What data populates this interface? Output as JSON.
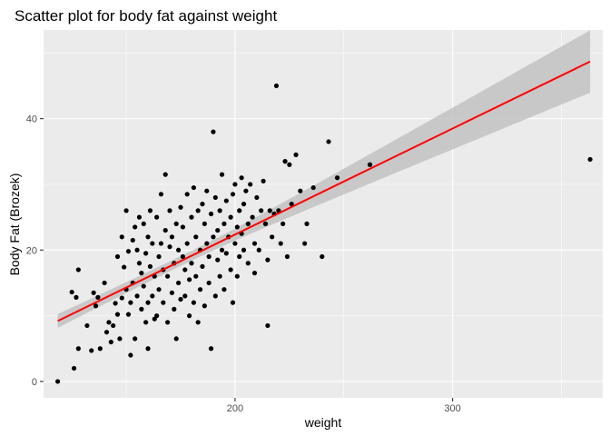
{
  "chart_data": {
    "type": "scatter",
    "title": "Scatter plot for body fat against weight",
    "xlabel": "weight",
    "ylabel": "Body Fat (Brozek)",
    "xlim": [
      112,
      369
    ],
    "ylim": [
      -2.5,
      53.5
    ],
    "x_ticks": [
      200,
      300
    ],
    "x_minor": [
      150,
      250,
      350
    ],
    "y_ticks": [
      0,
      20,
      40
    ],
    "y_minor": [
      10,
      30,
      50
    ],
    "grid": true,
    "legend": "none",
    "colors": {
      "panel": "#ebebeb",
      "grid": "#ffffff",
      "points": "#000000",
      "fit_line": "#ff0000",
      "confidence_band": "#bfbfbf"
    },
    "fit": {
      "method": "lm",
      "x_range": [
        118.5,
        363.2
      ],
      "y_at_start": 9.2,
      "y_at_end": 48.7,
      "band_lower_at_start": 8.2,
      "band_upper_at_start": 10.3,
      "band_lower_at_end": 44.0,
      "band_upper_at_end": 53.5
    },
    "points": [
      [
        118.5,
        0.0
      ],
      [
        125,
        13.6
      ],
      [
        126,
        2.0
      ],
      [
        127,
        12.8
      ],
      [
        128,
        17.0
      ],
      [
        128,
        5.0
      ],
      [
        132,
        8.5
      ],
      [
        134,
        4.7
      ],
      [
        135,
        13.5
      ],
      [
        136,
        11.5
      ],
      [
        137,
        12.8
      ],
      [
        138,
        5.0
      ],
      [
        140,
        15.0
      ],
      [
        141,
        7.5
      ],
      [
        142,
        9.0
      ],
      [
        143,
        6.0
      ],
      [
        144,
        8.5
      ],
      [
        145,
        11.9
      ],
      [
        146,
        10.2
      ],
      [
        146,
        19.0
      ],
      [
        147,
        6.5
      ],
      [
        148,
        12.7
      ],
      [
        148,
        22.0
      ],
      [
        149,
        17.4
      ],
      [
        150,
        26.0
      ],
      [
        150,
        14.0
      ],
      [
        151,
        19.8
      ],
      [
        151,
        10.2
      ],
      [
        152,
        4.0
      ],
      [
        152,
        12.0
      ],
      [
        153,
        21.5
      ],
      [
        153,
        15.0
      ],
      [
        154,
        23.5
      ],
      [
        154,
        6.5
      ],
      [
        155,
        20.0
      ],
      [
        155,
        13.0
      ],
      [
        156,
        25.0
      ],
      [
        156,
        18.0
      ],
      [
        157,
        16.5
      ],
      [
        157,
        11.0
      ],
      [
        158,
        24.0
      ],
      [
        158,
        14.5
      ],
      [
        159,
        9.0
      ],
      [
        159,
        19.5
      ],
      [
        160,
        22.0
      ],
      [
        160,
        12.0
      ],
      [
        160,
        5.0
      ],
      [
        161,
        17.5
      ],
      [
        161,
        26.0
      ],
      [
        162,
        13.0
      ],
      [
        162,
        21.0
      ],
      [
        163,
        9.5
      ],
      [
        163,
        16.0
      ],
      [
        164,
        25.0
      ],
      [
        164,
        10.0
      ],
      [
        165,
        19.0
      ],
      [
        165,
        14.0
      ],
      [
        166,
        28.5
      ],
      [
        166,
        21.0
      ],
      [
        167,
        12.0
      ],
      [
        167,
        17.0
      ],
      [
        168,
        31.5
      ],
      [
        168,
        23.0
      ],
      [
        169,
        16.0
      ],
      [
        169,
        9.0
      ],
      [
        170,
        20.5
      ],
      [
        170,
        26.0
      ],
      [
        171,
        13.5
      ],
      [
        171,
        22.0
      ],
      [
        172,
        18.0
      ],
      [
        172,
        11.0
      ],
      [
        173,
        24.0
      ],
      [
        173,
        6.5
      ],
      [
        174,
        15.0
      ],
      [
        174,
        20.0
      ],
      [
        175,
        26.5
      ],
      [
        175,
        12.5
      ],
      [
        176,
        19.0
      ],
      [
        176,
        23.5
      ],
      [
        177,
        13.0
      ],
      [
        177,
        17.0
      ],
      [
        178,
        28.5
      ],
      [
        178,
        21.0
      ],
      [
        179,
        15.5
      ],
      [
        179,
        10.0
      ],
      [
        180,
        25.0
      ],
      [
        180,
        18.0
      ],
      [
        181,
        29.5
      ],
      [
        181,
        12.0
      ],
      [
        182,
        22.0
      ],
      [
        182,
        16.0
      ],
      [
        183,
        26.0
      ],
      [
        183,
        9.0
      ],
      [
        184,
        20.0
      ],
      [
        184,
        14.0
      ],
      [
        185,
        27.0
      ],
      [
        185,
        17.5
      ],
      [
        186,
        24.0
      ],
      [
        186,
        11.5
      ],
      [
        187,
        21.0
      ],
      [
        187,
        29.0
      ],
      [
        188,
        15.0
      ],
      [
        188,
        19.0
      ],
      [
        189,
        25.5
      ],
      [
        189,
        5.0
      ],
      [
        190,
        22.0
      ],
      [
        190,
        38.0
      ],
      [
        191,
        13.0
      ],
      [
        191,
        28.0
      ],
      [
        192,
        18.5
      ],
      [
        192,
        23.0
      ],
      [
        193,
        26.0
      ],
      [
        193,
        16.0
      ],
      [
        194,
        31.5
      ],
      [
        194,
        20.0
      ],
      [
        195,
        24.0
      ],
      [
        195,
        14.0
      ],
      [
        196,
        27.5
      ],
      [
        196,
        19.5
      ],
      [
        197,
        22.0
      ],
      [
        198,
        17.0
      ],
      [
        198,
        25.0
      ],
      [
        199,
        12.0
      ],
      [
        199,
        28.5
      ],
      [
        200,
        21.0
      ],
      [
        200,
        30.0
      ],
      [
        201,
        23.5
      ],
      [
        201,
        16.0
      ],
      [
        202,
        26.0
      ],
      [
        202,
        19.0
      ],
      [
        203,
        31.0
      ],
      [
        203,
        22.5
      ],
      [
        204,
        27.0
      ],
      [
        204,
        20.0
      ],
      [
        205,
        29.0
      ],
      [
        206,
        24.0
      ],
      [
        206,
        18.0
      ],
      [
        207,
        30.0
      ],
      [
        208,
        25.0
      ],
      [
        209,
        21.0
      ],
      [
        209,
        16.5
      ],
      [
        210,
        28.0
      ],
      [
        211,
        20.0
      ],
      [
        212,
        26.0
      ],
      [
        213,
        30.5
      ],
      [
        214,
        24.0
      ],
      [
        215,
        8.5
      ],
      [
        215,
        18.5
      ],
      [
        216,
        26.0
      ],
      [
        217,
        22.0
      ],
      [
        218,
        25.5
      ],
      [
        219,
        45.0
      ],
      [
        220,
        26.0
      ],
      [
        221,
        21.0
      ],
      [
        222,
        24.0
      ],
      [
        223,
        33.5
      ],
      [
        224,
        19.0
      ],
      [
        225,
        33.0
      ],
      [
        226,
        27.0
      ],
      [
        228,
        34.5
      ],
      [
        230,
        29.0
      ],
      [
        232,
        21.0
      ],
      [
        233,
        24.0
      ],
      [
        236,
        29.5
      ],
      [
        240,
        19.0
      ],
      [
        243,
        36.5
      ],
      [
        247,
        31.0
      ],
      [
        262,
        33.0
      ],
      [
        363.2,
        33.8
      ]
    ]
  }
}
